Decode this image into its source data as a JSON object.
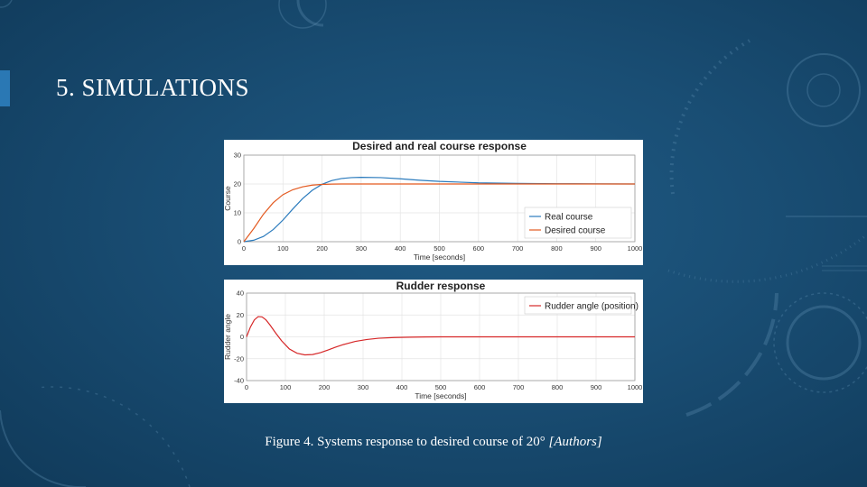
{
  "slide": {
    "title": "5. SIMULATIONS",
    "caption_main": "Figure 4. Systems response to desired course of 20°",
    "caption_source": "[Authors]"
  },
  "colors": {
    "background": "#194d73",
    "accent": "#2a78b4",
    "real_course": "#2b7bbd",
    "desired_course": "#e3591f",
    "rudder": "#d62728"
  },
  "chart_data": [
    {
      "type": "line",
      "title": "Desired and real course response",
      "xlabel": "Time [seconds]",
      "ylabel": "Course",
      "xlim": [
        0,
        1000
      ],
      "ylim": [
        0,
        30
      ],
      "xticks": [
        0,
        100,
        200,
        300,
        400,
        500,
        600,
        700,
        800,
        900,
        1000
      ],
      "yticks": [
        0,
        10,
        20,
        30
      ],
      "grid": true,
      "legend": "bottom-right",
      "series": [
        {
          "name": "Real course",
          "color": "#2b7bbd",
          "x": [
            0,
            25,
            50,
            75,
            100,
            125,
            150,
            175,
            200,
            225,
            250,
            275,
            300,
            350,
            400,
            450,
            500,
            600,
            700,
            800,
            900,
            1000
          ],
          "y": [
            0,
            0.5,
            1.8,
            4.2,
            7.5,
            11.3,
            14.9,
            17.8,
            19.9,
            21.2,
            21.9,
            22.2,
            22.3,
            22.2,
            21.8,
            21.3,
            20.9,
            20.4,
            20.2,
            20.1,
            20.05,
            20.0
          ]
        },
        {
          "name": "Desired course",
          "color": "#e3591f",
          "x": [
            0,
            25,
            50,
            75,
            100,
            125,
            150,
            175,
            200,
            225,
            250,
            300,
            400,
            500,
            600,
            700,
            800,
            900,
            1000
          ],
          "y": [
            0,
            4.5,
            9.5,
            13.5,
            16.3,
            18.0,
            19.0,
            19.6,
            19.85,
            19.95,
            20.0,
            20.0,
            20.0,
            20.0,
            20.0,
            20.0,
            20.0,
            20.0,
            20.0
          ]
        }
      ]
    },
    {
      "type": "line",
      "title": "Rudder response",
      "xlabel": "Time [seconds]",
      "ylabel": "Rudder angle",
      "xlim": [
        0,
        1000
      ],
      "ylim": [
        -40,
        40
      ],
      "xticks": [
        0,
        100,
        200,
        300,
        400,
        500,
        600,
        700,
        800,
        900,
        1000
      ],
      "yticks": [
        -40,
        -20,
        0,
        20,
        40
      ],
      "grid": true,
      "legend": "top-right",
      "series": [
        {
          "name": "Rudder angle (position)",
          "color": "#d62728",
          "x": [
            0,
            10,
            20,
            30,
            40,
            50,
            60,
            75,
            90,
            110,
            130,
            150,
            170,
            190,
            210,
            230,
            250,
            280,
            310,
            340,
            380,
            420,
            460,
            500,
            550,
            600,
            700,
            800,
            900,
            1000
          ],
          "y": [
            0,
            9,
            15.5,
            18.5,
            18.2,
            15.5,
            11,
            3.5,
            -3.5,
            -11,
            -15,
            -16.5,
            -16.2,
            -14.5,
            -12,
            -9.3,
            -7,
            -4.2,
            -2.4,
            -1.3,
            -0.6,
            -0.3,
            -0.1,
            0,
            0,
            0,
            0,
            0,
            0,
            0
          ]
        }
      ]
    }
  ]
}
